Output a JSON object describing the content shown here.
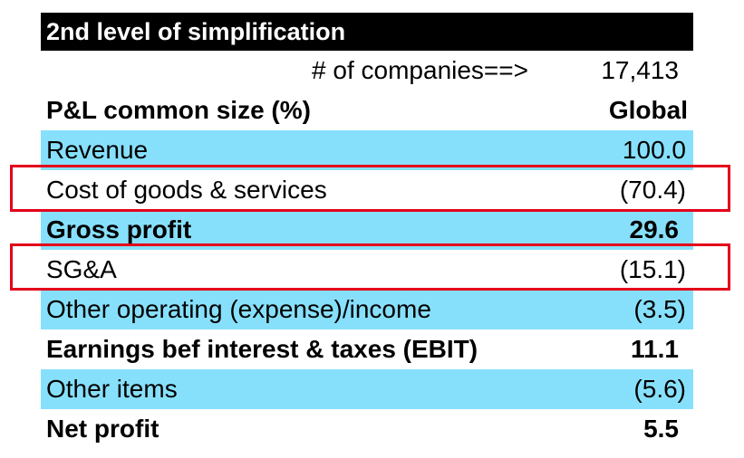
{
  "title": "2nd level of simplification",
  "companies": {
    "label": "# of companies==>",
    "value": "17,413"
  },
  "header": {
    "label": "P&L common size (%)",
    "column": "Global"
  },
  "rows": [
    {
      "label": "Revenue",
      "value": "100.0"
    },
    {
      "label": "Cost of goods & services",
      "value": "(70.4)"
    },
    {
      "label": "Gross profit",
      "value": "29.6"
    },
    {
      "label": "SG&A",
      "value": "(15.1)"
    },
    {
      "label": "Other operating (expense)/income",
      "value": "(3.5)"
    },
    {
      "label": "Earnings bef interest & taxes (EBIT)",
      "value": "11.1"
    },
    {
      "label": "Other items",
      "value": "(5.6)"
    },
    {
      "label": "Net profit",
      "value": "5.5"
    }
  ],
  "colors": {
    "title_bg": "#000000",
    "row_highlight": "#87e0fb",
    "callout_border": "#e3001b"
  }
}
